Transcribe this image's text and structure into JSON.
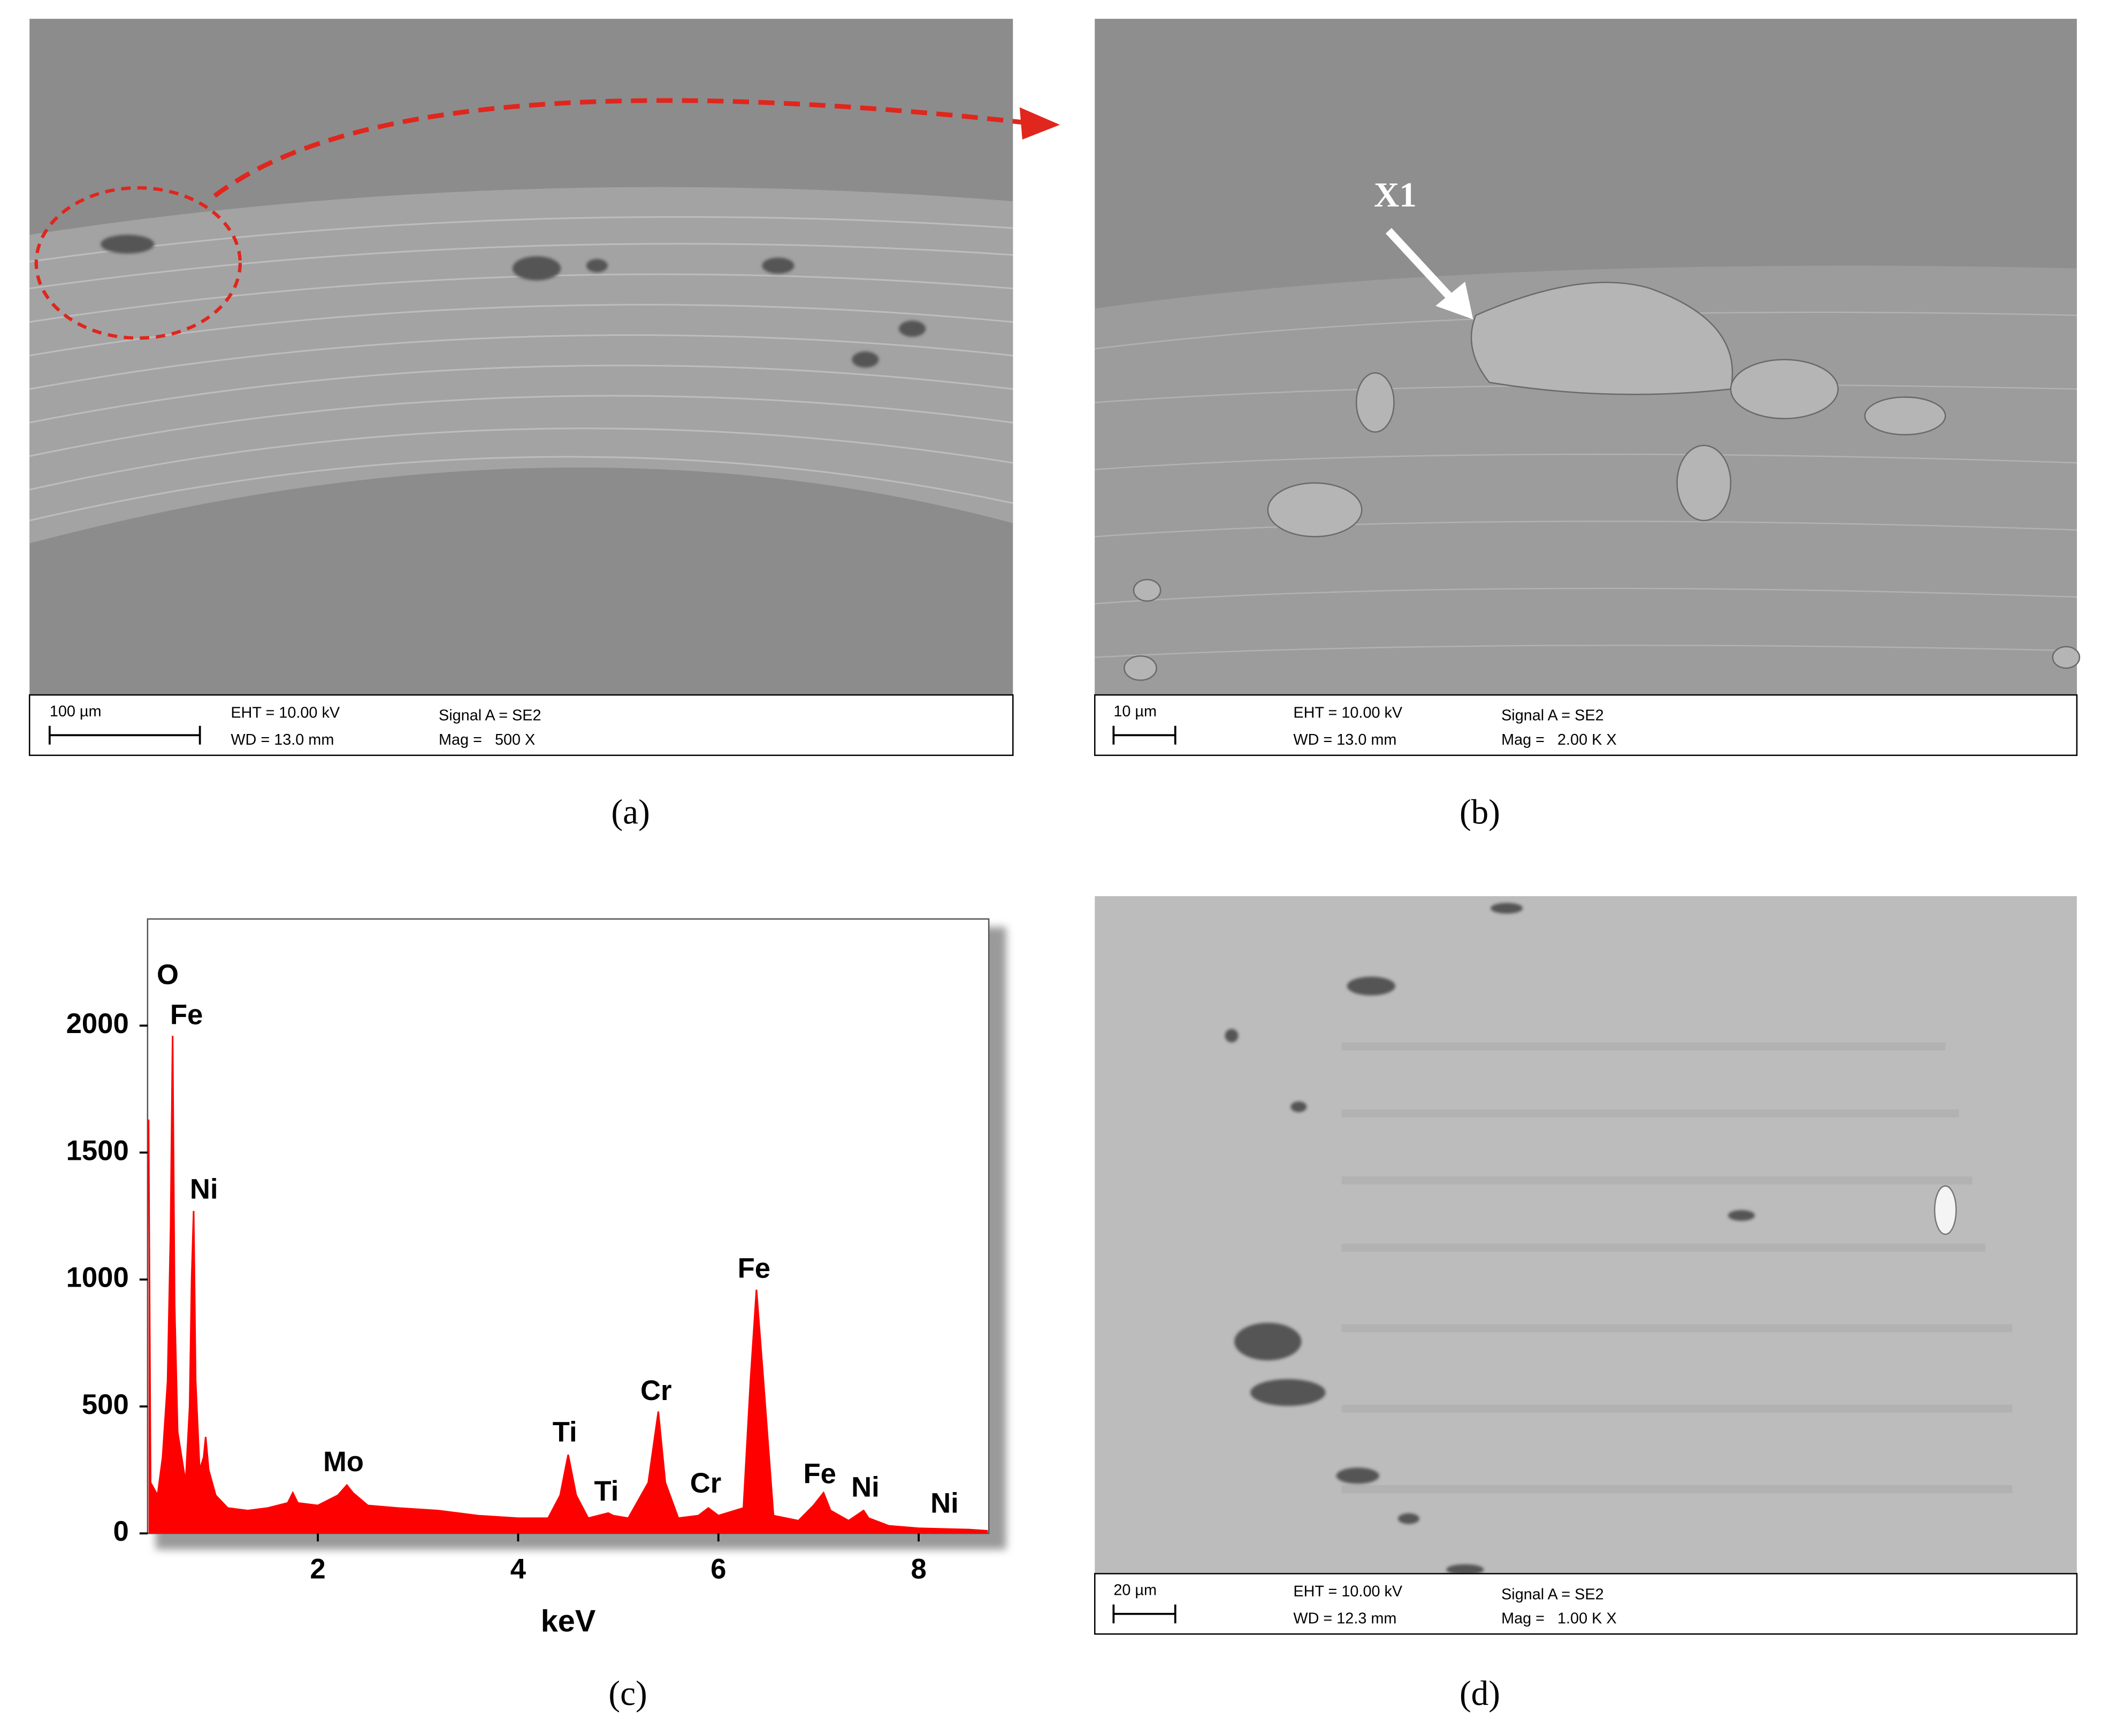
{
  "panel_a": {
    "label": "(a)",
    "info": {
      "scale": "100 µm",
      "eht": "EHT = 10.00 kV",
      "wd": "WD = 13.0 mm",
      "signal": "Signal A = SE2",
      "mag": "Mag =   500 X"
    }
  },
  "panel_b": {
    "label": "(b)",
    "marker": "X1",
    "info": {
      "scale": "10 µm",
      "eht": "EHT = 10.00 kV",
      "wd": "WD = 13.0 mm",
      "signal": "Signal A = SE2",
      "mag": "Mag =   2.00 K X"
    }
  },
  "panel_d": {
    "label": "(d)",
    "info": {
      "scale": "20 µm",
      "eht": "EHT = 10.00 kV",
      "wd": "WD = 12.3 mm",
      "signal": "Signal A = SE2",
      "mag": "Mag =   1.00 K X"
    }
  },
  "chart_data": {
    "type": "area",
    "panel_label": "(c)",
    "xlabel": "keV",
    "color": "#ff0000",
    "x": [
      0.31,
      0.33,
      0.4,
      0.45,
      0.5,
      0.53,
      0.55,
      0.57,
      0.6,
      0.64,
      0.68,
      0.72,
      0.74,
      0.76,
      0.78,
      0.82,
      0.86,
      0.88,
      0.91,
      0.98,
      1.1,
      1.3,
      1.5,
      1.7,
      1.75,
      1.8,
      2.0,
      2.2,
      2.29,
      2.35,
      2.5,
      2.8,
      3.2,
      3.6,
      4.0,
      4.3,
      4.42,
      4.5,
      4.58,
      4.7,
      4.9,
      4.95,
      5.1,
      5.3,
      5.4,
      5.47,
      5.6,
      5.8,
      5.9,
      6.0,
      6.25,
      6.32,
      6.38,
      6.45,
      6.55,
      6.8,
      6.95,
      7.05,
      7.12,
      7.3,
      7.45,
      7.5,
      7.7,
      8.0,
      8.5,
      8.69
    ],
    "y": [
      1630,
      200,
      150,
      300,
      600,
      1200,
      1960,
      900,
      400,
      300,
      200,
      500,
      1000,
      1270,
      600,
      250,
      300,
      380,
      250,
      150,
      100,
      90,
      100,
      120,
      160,
      120,
      110,
      150,
      190,
      160,
      110,
      100,
      90,
      70,
      60,
      60,
      150,
      310,
      150,
      60,
      80,
      70,
      60,
      200,
      480,
      200,
      60,
      70,
      100,
      70,
      100,
      600,
      960,
      600,
      70,
      50,
      110,
      160,
      90,
      50,
      90,
      60,
      30,
      20,
      15,
      10
    ],
    "xlim": [
      0.3,
      8.7
    ],
    "ylim": [
      0,
      2420
    ],
    "xticks": [
      2,
      4,
      6,
      8
    ],
    "yticks": [
      0,
      500,
      1000,
      1500,
      2000
    ],
    "annotations": [
      "O",
      "Fe",
      "Ni",
      "Mo",
      "Ti",
      "Ti",
      "Cr",
      "Cr",
      "Fe",
      "Fe",
      "Ni",
      "Ni"
    ]
  }
}
